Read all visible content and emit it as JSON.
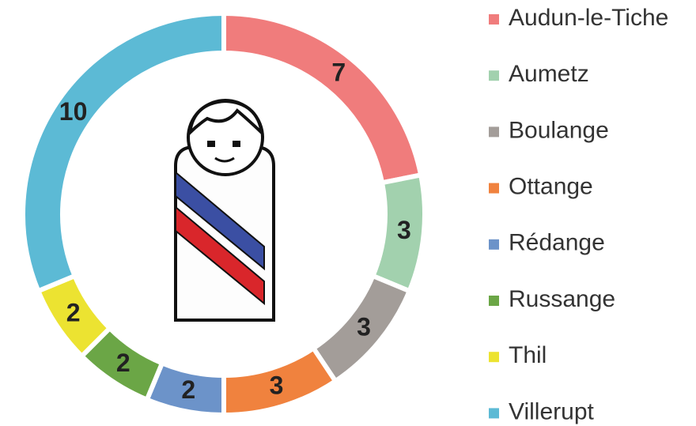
{
  "chart_data": {
    "type": "donut",
    "categories": [
      "Audun-le-Tiche",
      "Aumetz",
      "Boulange",
      "Ottange",
      "Rédange",
      "Russange",
      "Thil",
      "Villerupt"
    ],
    "values": [
      7,
      3,
      3,
      3,
      2,
      2,
      2,
      10
    ],
    "colors": [
      "#f07c7c",
      "#a2d1ae",
      "#a39d99",
      "#f0823e",
      "#6c93c9",
      "#6ba646",
      "#ece331",
      "#5cbad5"
    ],
    "legend": "right"
  }
}
